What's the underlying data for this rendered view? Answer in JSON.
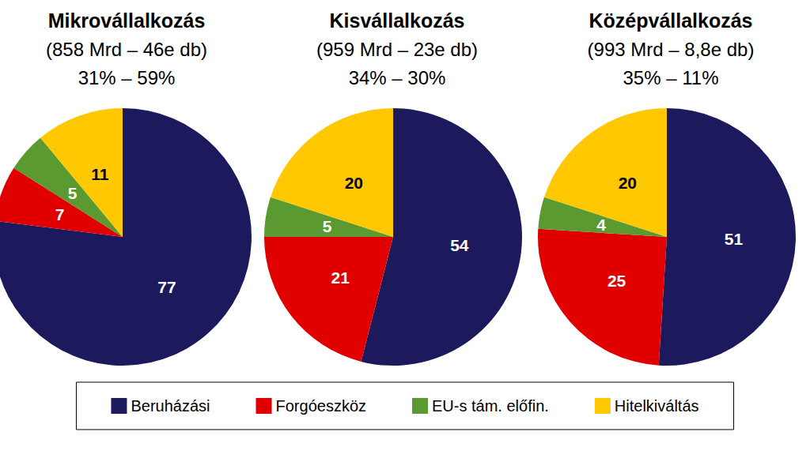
{
  "chart_data": [
    {
      "type": "pie",
      "title": "Mikrovállalkozás",
      "subtitle": "(858 Mrd – 46e db)\n31% – 59%",
      "categories": [
        "Beruházási",
        "Forgóeszköz",
        "EU-s tám. előfin.",
        "Hitelkiváltás"
      ],
      "values": [
        77,
        7,
        5,
        11
      ],
      "colors": [
        "#1c1a5c",
        "#e00000",
        "#5a9a30",
        "#ffc800"
      ],
      "data_labels": true,
      "legend": "bottom"
    },
    {
      "type": "pie",
      "title": "Kisvállalkozás",
      "subtitle": "(959 Mrd – 23e db)\n34% – 30%",
      "categories": [
        "Beruházási",
        "Forgóeszköz",
        "EU-s tám. előfin.",
        "Hitelkiváltás"
      ],
      "values": [
        54,
        21,
        5,
        20
      ],
      "colors": [
        "#1c1a5c",
        "#e00000",
        "#5a9a30",
        "#ffc800"
      ],
      "data_labels": true
    },
    {
      "type": "pie",
      "title": "Középvállalkozás",
      "subtitle": "(993 Mrd – 8,8e db)\n35% – 11%",
      "categories": [
        "Beruházási",
        "Forgóeszköz",
        "EU-s tám. előfin.",
        "Hitelkiváltás"
      ],
      "values": [
        51,
        25,
        4,
        20
      ],
      "colors": [
        "#1c1a5c",
        "#e00000",
        "#5a9a30",
        "#ffc800"
      ],
      "data_labels": true
    }
  ]
}
